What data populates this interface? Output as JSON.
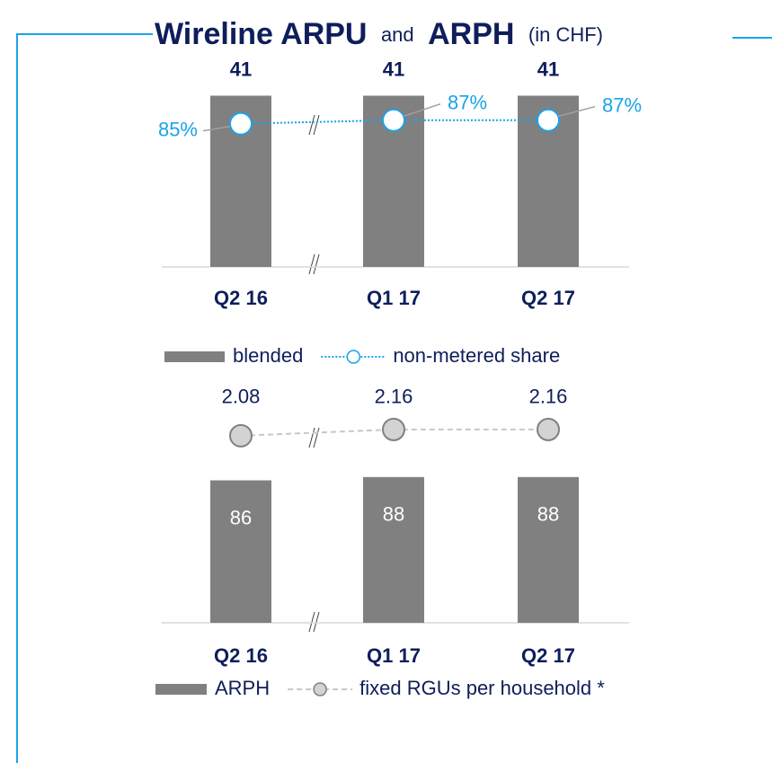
{
  "title": {
    "parts": [
      "Wireline ARPU",
      "and",
      "ARPH",
      "(in CHF)"
    ]
  },
  "chart_data": [
    {
      "type": "combo",
      "categories": [
        "Q2 16",
        "Q1 17",
        "Q2 17"
      ],
      "ylim": [
        0,
        51
      ],
      "y2lim": [
        5,
        124
      ],
      "series": [
        {
          "name": "blended",
          "type": "bar",
          "color": "#808080",
          "values": [
            41,
            41,
            41
          ]
        },
        {
          "name": "non-metered share",
          "type": "line",
          "axis": "y2",
          "color": "#1aa3e8",
          "line_style": "dotted",
          "marker_fill": "#ffffff",
          "values": [
            85,
            87,
            87
          ],
          "value_labels": [
            "85%",
            "87%",
            "87%"
          ]
        }
      ]
    },
    {
      "type": "combo",
      "categories": [
        "Q2 16",
        "Q1 17",
        "Q2 17"
      ],
      "ylim": [
        0,
        121
      ],
      "y2lim": [
        -0.3,
        2.25
      ],
      "series": [
        {
          "name": "ARPH",
          "type": "bar",
          "color": "#808080",
          "values": [
            86,
            88,
            88
          ]
        },
        {
          "name": "fixed RGUs per household *",
          "type": "line",
          "axis": "y2",
          "color": "#c8c8c8",
          "line_style": "dashed",
          "marker_fill": "#d3d3d3",
          "values": [
            2.08,
            2.16,
            2.16
          ],
          "value_labels": [
            "2.08",
            "2.16",
            "2.16"
          ]
        }
      ]
    }
  ]
}
